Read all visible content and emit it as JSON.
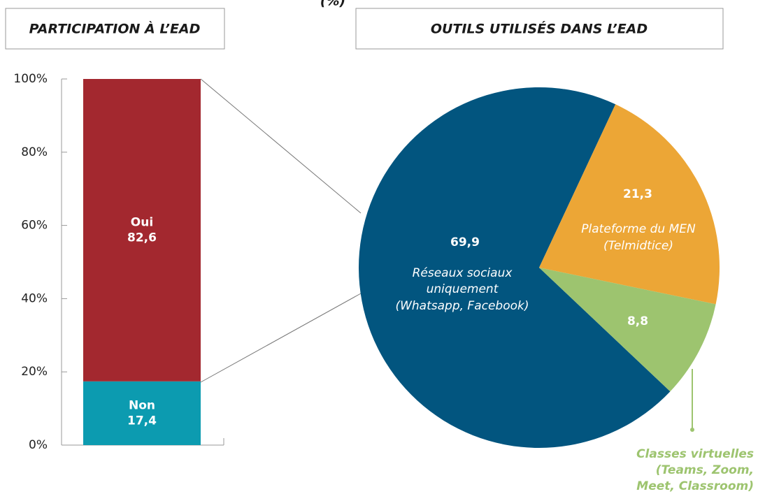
{
  "title": "(%)",
  "chart_data": [
    {
      "type": "bar",
      "title": "PARTICIPATION À L’EAD",
      "categories": [
        null
      ],
      "series": [
        {
          "name": "Non",
          "color": "#0c9bb0",
          "values": [
            17.4
          ],
          "value_labels": [
            "17,4"
          ]
        },
        {
          "name": "Oui",
          "color": "#a3282f",
          "values": [
            82.6
          ],
          "value_labels": [
            "82,6"
          ]
        }
      ],
      "stacked": true,
      "ylim": [
        0,
        100
      ],
      "yticks": [
        {
          "value": 0,
          "label": "0%"
        },
        {
          "value": 20,
          "label": "20%"
        },
        {
          "value": 40,
          "label": "40%"
        },
        {
          "value": 60,
          "label": "60%"
        },
        {
          "value": 80,
          "label": "80%"
        },
        {
          "value": 100,
          "label": "100%"
        }
      ]
    },
    {
      "type": "pie",
      "title": "OUTILS UTILISÉS DANS L’EAD",
      "categories": [
        [
          "Réseaux sociaux",
          "uniquement",
          "(Whatsapp, Facebook)"
        ],
        [
          "Plateforme du MEN",
          "(Telmidtice)"
        ],
        [
          "Classes virtuelles",
          "(Teams, Zoom,",
          "Meet, Classroom)"
        ]
      ],
      "values": [
        69.9,
        21.3,
        8.8
      ],
      "value_labels": [
        "69,9",
        "21,3",
        "8,8"
      ],
      "colors": [
        "#02557f",
        "#eca636",
        "#9dc46f"
      ]
    }
  ]
}
